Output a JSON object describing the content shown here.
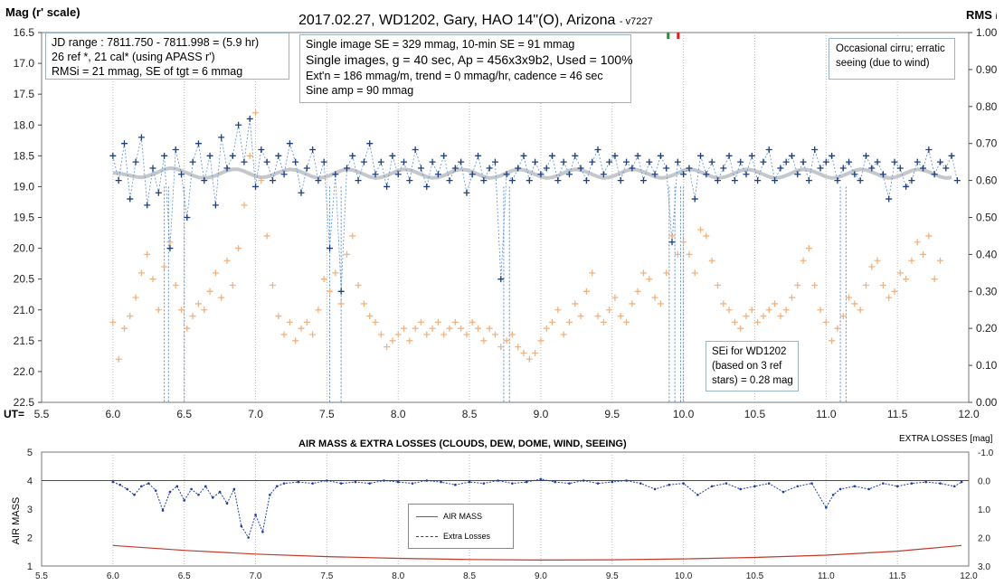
{
  "top_chart": {
    "title": "2017.02.27,  WD1202, Gary, HAO  14\"(O), Arizona",
    "version_tag": "- v7227",
    "y_left_label": "Mag (r' scale)",
    "y_right_label": "RMS",
    "y_right_label_suffix": "i",
    "x_prefix": "UT=",
    "x_ticks": [
      "5.5",
      "6.0",
      "6.5",
      "7.0",
      "7.5",
      "8.0",
      "8.5",
      "9.0",
      "9.5",
      "10.0",
      "10.5",
      "11.0",
      "11.5",
      "12.0"
    ],
    "y_left_ticks": [
      "16.5",
      "17.0",
      "17.5",
      "18.0",
      "18.5",
      "19.0",
      "19.5",
      "20.0",
      "20.5",
      "21.0",
      "21.5",
      "22.0",
      "22.5"
    ],
    "y_right_ticks": [
      "1.00",
      "0.90",
      "0.80",
      "0.70",
      "0.60",
      "0.50",
      "0.40",
      "0.30",
      "0.20",
      "0.10",
      "0.00"
    ],
    "info_left": [
      "JD range  : 7811.750  - 7811.998  = (5.9 hr)",
      "26 ref *, 21 cal* (using APASS  r')",
      "RMSi = 21 mmag, SE of tgt = 6 mmag"
    ],
    "info_mid": [
      "Single image SE = 329 mmag, 10-min SE = 91 mmag",
      "Single images, g = 40 sec, Ap = 456x3x9b2, Used = 100%",
      "Ext'n = 186 mmag/m, trend = 0 mmag/hr, cadence = 46 sec",
      "Sine amp = 90 mmag"
    ],
    "note_right": [
      "Occasional cirru; erratic",
      "seeing (due to wind)"
    ],
    "note_sei": [
      "SEi for WD1202",
      "(based on 3 ref",
      "stars) = 0.28 mag"
    ]
  },
  "bottom_chart": {
    "title": "AIR MASS & EXTRA LOSSES (CLOUDS, DEW, DOME, WIND, SEEING)",
    "y_left_label": "AIR MASS",
    "y_right_label": "EXTRA LOSSES [mag]",
    "x_ticks": [
      "5.5",
      "6.0",
      "6.5",
      "7.0",
      "7.5",
      "8.0",
      "8.5",
      "9.0",
      "9.5",
      "10.0",
      "10.5",
      "11.0",
      "11.5",
      "12.0"
    ],
    "y_left_ticks": [
      "5",
      "4",
      "3",
      "2",
      "1"
    ],
    "y_right_ticks": [
      "-1.0",
      "0.0",
      "1.0",
      "2.0",
      "3.0"
    ],
    "legend": [
      "AIR MASS",
      "Extra Losses"
    ]
  },
  "colors": {
    "target": "#1f3f7a",
    "target_line": "#5b8fd1",
    "rms": "#f2b27e",
    "smooth": "#c4c8cc",
    "airmass": "#c0392b",
    "losses": "#1f3fa0",
    "grid": "#b9b9b9"
  },
  "chart_data": [
    {
      "type": "scatter",
      "title": "2017.02.27,  WD1202, Gary, HAO  14\"(O), Arizona",
      "xlabel": "UT",
      "ylabel": "Mag (r' scale)",
      "y2label": "RMS",
      "xlim": [
        5.5,
        12.0
      ],
      "ylim": [
        16.5,
        22.5
      ],
      "y_inverted": true,
      "y2lim": [
        0.0,
        1.0
      ],
      "grid": true,
      "series": [],
      "target_x": [
        6.0,
        6.04,
        6.08,
        6.12,
        6.16,
        6.2,
        6.24,
        6.28,
        6.32,
        6.36,
        6.4,
        6.44,
        6.48,
        6.52,
        6.56,
        6.6,
        6.64,
        6.68,
        6.72,
        6.76,
        6.8,
        6.84,
        6.88,
        6.92,
        6.96,
        7.0,
        7.04,
        7.08,
        7.12,
        7.16,
        7.2,
        7.24,
        7.28,
        7.32,
        7.36,
        7.4,
        7.44,
        7.48,
        7.52,
        7.56,
        7.6,
        7.64,
        7.68,
        7.72,
        7.76,
        7.8,
        7.84,
        7.88,
        7.92,
        7.96,
        8.0,
        8.04,
        8.08,
        8.12,
        8.16,
        8.2,
        8.24,
        8.28,
        8.32,
        8.36,
        8.4,
        8.44,
        8.48,
        8.52,
        8.56,
        8.6,
        8.64,
        8.68,
        8.72,
        8.76,
        8.8,
        8.84,
        8.88,
        8.92,
        8.96,
        9.0,
        9.04,
        9.08,
        9.12,
        9.16,
        9.2,
        9.24,
        9.28,
        9.32,
        9.36,
        9.4,
        9.44,
        9.48,
        9.52,
        9.56,
        9.6,
        9.64,
        9.68,
        9.72,
        9.76,
        9.8,
        9.84,
        9.88,
        9.92,
        9.96,
        10.0,
        10.04,
        10.08,
        10.12,
        10.16,
        10.2,
        10.24,
        10.28,
        10.32,
        10.36,
        10.4,
        10.44,
        10.48,
        10.52,
        10.56,
        10.6,
        10.64,
        10.68,
        10.72,
        10.76,
        10.8,
        10.84,
        10.88,
        10.92,
        10.96,
        11.0,
        11.04,
        11.08,
        11.12,
        11.16,
        11.2,
        11.24,
        11.28,
        11.32,
        11.36,
        11.4,
        11.44,
        11.48,
        11.52,
        11.56,
        11.6,
        11.64,
        11.68,
        11.72,
        11.76,
        11.8,
        11.84,
        11.88,
        11.92
      ],
      "target_y": [
        18.5,
        18.9,
        18.3,
        19.2,
        18.6,
        18.2,
        19.3,
        18.7,
        19.1,
        18.5,
        20.0,
        18.4,
        18.8,
        19.5,
        18.6,
        18.3,
        18.9,
        18.5,
        19.3,
        18.2,
        18.7,
        18.5,
        18.0,
        18.6,
        17.9,
        19.0,
        18.4,
        18.6,
        18.9,
        18.5,
        18.8,
        18.3,
        18.6,
        19.1,
        18.7,
        18.4,
        18.9,
        18.6,
        20.0,
        18.8,
        20.7,
        18.7,
        18.5,
        18.9,
        18.6,
        18.3,
        18.8,
        18.6,
        19.0,
        18.5,
        18.8,
        18.6,
        18.9,
        18.4,
        18.7,
        19.0,
        18.6,
        18.8,
        18.5,
        18.9,
        18.7,
        18.6,
        19.1,
        18.8,
        18.5,
        18.9,
        18.7,
        18.6,
        20.5,
        18.8,
        18.9,
        18.7,
        18.5,
        18.9,
        18.6,
        18.8,
        18.7,
        18.5,
        18.9,
        18.6,
        18.8,
        18.5,
        18.7,
        18.9,
        18.6,
        18.4,
        18.8,
        18.6,
        18.5,
        18.9,
        18.6,
        18.7,
        18.5,
        18.9,
        18.6,
        18.8,
        18.5,
        18.7,
        19.9,
        18.6,
        18.8,
        18.7,
        19.2,
        18.5,
        18.8,
        18.6,
        18.9,
        18.7,
        18.5,
        18.9,
        18.6,
        18.8,
        18.5,
        18.9,
        18.6,
        18.4,
        18.9,
        18.7,
        18.6,
        18.5,
        18.8,
        18.6,
        18.9,
        18.4,
        18.7,
        18.6,
        18.5,
        18.9,
        18.7,
        18.6,
        18.8,
        18.9,
        18.5,
        18.7,
        18.6,
        18.8,
        19.2,
        18.6,
        18.7,
        19.0,
        18.9,
        18.6,
        18.7,
        18.4,
        18.8,
        18.6,
        18.7,
        18.5,
        18.9,
        18.6,
        18.7,
        18.5
      ],
      "rms_x": [
        6.0,
        6.04,
        6.08,
        6.12,
        6.16,
        6.2,
        6.24,
        6.28,
        6.32,
        6.36,
        6.4,
        6.44,
        6.48,
        6.52,
        6.56,
        6.6,
        6.64,
        6.68,
        6.72,
        6.76,
        6.8,
        6.84,
        6.88,
        6.92,
        6.96,
        7.0,
        7.04,
        7.08,
        7.12,
        7.16,
        7.2,
        7.24,
        7.28,
        7.32,
        7.36,
        7.4,
        7.44,
        7.48,
        7.52,
        7.56,
        7.6,
        7.64,
        7.68,
        7.72,
        7.76,
        7.8,
        7.84,
        7.88,
        7.92,
        7.96,
        8.0,
        8.04,
        8.08,
        8.12,
        8.16,
        8.2,
        8.24,
        8.28,
        8.32,
        8.36,
        8.4,
        8.44,
        8.48,
        8.52,
        8.56,
        8.6,
        8.64,
        8.68,
        8.72,
        8.76,
        8.8,
        8.84,
        8.88,
        8.92,
        8.96,
        9.0,
        9.04,
        9.08,
        9.12,
        9.16,
        9.2,
        9.24,
        9.28,
        9.32,
        9.36,
        9.4,
        9.44,
        9.48,
        9.52,
        9.56,
        9.6,
        9.64,
        9.68,
        9.72,
        9.76,
        9.8,
        9.84,
        9.88,
        9.92,
        9.96,
        10.0,
        10.04,
        10.08,
        10.12,
        10.16,
        10.2,
        10.24,
        10.28,
        10.32,
        10.36,
        10.4,
        10.44,
        10.48,
        10.52,
        10.56,
        10.6,
        10.64,
        10.68,
        10.72,
        10.76,
        10.8,
        10.84,
        10.88,
        10.92,
        10.96,
        11.0,
        11.04,
        11.08,
        11.12,
        11.16,
        11.2,
        11.24,
        11.28,
        11.32,
        11.36,
        11.4,
        11.44,
        11.48,
        11.52,
        11.56,
        11.6,
        11.64,
        11.68,
        11.72,
        11.76,
        11.8,
        11.84,
        11.88,
        11.92
      ],
      "rms_y": [
        21.2,
        21.8,
        21.3,
        21.1,
        20.8,
        20.4,
        20.1,
        20.5,
        21.0,
        20.3,
        19.9,
        20.6,
        21.0,
        21.3,
        21.1,
        20.9,
        21.0,
        20.7,
        20.4,
        20.8,
        20.2,
        20.6,
        20.0,
        19.3,
        18.5,
        17.8,
        18.9,
        19.8,
        20.6,
        21.1,
        21.4,
        21.2,
        21.5,
        21.3,
        21.2,
        21.4,
        21.0,
        20.5,
        20.7,
        20.4,
        20.9,
        20.1,
        19.8,
        20.6,
        20.9,
        21.1,
        21.2,
        21.4,
        21.6,
        21.5,
        21.4,
        21.3,
        21.5,
        21.3,
        21.2,
        21.4,
        21.3,
        21.2,
        21.4,
        21.3,
        21.2,
        21.3,
        21.4,
        21.2,
        21.3,
        21.5,
        21.3,
        21.4,
        21.6,
        21.5,
        21.4,
        21.6,
        21.7,
        21.8,
        21.7,
        21.5,
        21.3,
        21.2,
        21.0,
        21.4,
        21.2,
        20.9,
        21.1,
        20.7,
        20.4,
        21.1,
        21.2,
        21.0,
        20.8,
        21.1,
        21.2,
        20.9,
        20.7,
        20.4,
        20.5,
        20.8,
        20.9,
        20.4,
        19.8,
        20.1,
        19.9,
        20.1,
        20.4,
        19.7,
        19.8,
        20.2,
        20.6,
        20.9,
        21.0,
        21.2,
        21.3,
        21.1,
        21.0,
        21.2,
        21.1,
        21.0,
        20.9,
        21.1,
        21.0,
        20.8,
        20.6,
        20.2,
        20.0,
        20.6,
        21.0,
        21.2,
        21.5,
        21.3,
        21.1,
        20.8,
        20.9,
        21.0,
        20.6,
        20.3,
        20.2,
        20.6,
        20.8,
        20.7,
        20.4,
        20.5,
        20.2,
        19.9,
        20.1,
        19.8,
        20.5,
        20.2
      ],
      "smooth_y": [
        18.78,
        18.78,
        18.8,
        18.82,
        18.84,
        18.85,
        18.83,
        18.8,
        18.76,
        18.72,
        18.7,
        18.71,
        18.74,
        18.78,
        18.82,
        18.85,
        18.86,
        18.85,
        18.82,
        18.78,
        18.74,
        18.72,
        18.72,
        18.75,
        18.79,
        18.83,
        18.85,
        18.84,
        18.81,
        18.77,
        18.74,
        18.72,
        18.73,
        18.76,
        18.8,
        18.84,
        18.86,
        18.85,
        18.82,
        18.78,
        18.74,
        18.72,
        18.73,
        18.76,
        18.8,
        18.84,
        18.86,
        18.85,
        18.82,
        18.78,
        18.74,
        18.72,
        18.73,
        18.76,
        18.8,
        18.84,
        18.86,
        18.85,
        18.82,
        18.78,
        18.74,
        18.72,
        18.73,
        18.76,
        18.8,
        18.84,
        18.86,
        18.85,
        18.82,
        18.78,
        18.74,
        18.72,
        18.73,
        18.76,
        18.8,
        18.84,
        18.86,
        18.85,
        18.82,
        18.78,
        18.74,
        18.72,
        18.73,
        18.76,
        18.8,
        18.84,
        18.86,
        18.85,
        18.82,
        18.78,
        18.74,
        18.72,
        18.73,
        18.76,
        18.8,
        18.84,
        18.86,
        18.85,
        18.82,
        18.78,
        18.74,
        18.72,
        18.73,
        18.76,
        18.8,
        18.84,
        18.86,
        18.85,
        18.82,
        18.78,
        18.74,
        18.72,
        18.73,
        18.76,
        18.8,
        18.84,
        18.86,
        18.85,
        18.82,
        18.78,
        18.74,
        18.72,
        18.73,
        18.76,
        18.8,
        18.84,
        18.86,
        18.85,
        18.82,
        18.78,
        18.74,
        18.72,
        18.73,
        18.76,
        18.8,
        18.84,
        18.86,
        18.85,
        18.82,
        18.78,
        18.74,
        18.72,
        18.73,
        18.76,
        18.8,
        18.84,
        18.86,
        18.85
      ],
      "dropouts_x": [
        6.36,
        6.39,
        6.5,
        7.52,
        7.6,
        8.74,
        8.78,
        9.9,
        9.94,
        9.98,
        10.0,
        11.1,
        11.14
      ]
    },
    {
      "type": "line",
      "title": "AIR MASS & EXTRA LOSSES (CLOUDS, DEW, DOME, WIND, SEEING)",
      "xlabel": "",
      "ylabel": "AIR MASS",
      "y2label": "EXTRA LOSSES [mag]",
      "xlim": [
        5.5,
        12.0
      ],
      "ylim": [
        1,
        5
      ],
      "y2lim": [
        -1.0,
        3.0
      ],
      "y2_inverted": true,
      "series": [
        {
          "name": "AIR MASS",
          "x": [
            6.0,
            6.5,
            7.0,
            7.5,
            8.0,
            8.5,
            9.0,
            9.5,
            10.0,
            10.5,
            11.0,
            11.5,
            11.95
          ],
          "values": [
            1.72,
            1.55,
            1.42,
            1.33,
            1.27,
            1.23,
            1.21,
            1.22,
            1.25,
            1.3,
            1.38,
            1.52,
            1.72
          ]
        },
        {
          "name": "Extra Losses",
          "x": [
            6.0,
            6.05,
            6.1,
            6.15,
            6.2,
            6.25,
            6.3,
            6.35,
            6.4,
            6.45,
            6.5,
            6.55,
            6.6,
            6.65,
            6.7,
            6.75,
            6.8,
            6.85,
            6.9,
            6.95,
            7.0,
            7.05,
            7.1,
            7.15,
            7.2,
            7.3,
            7.4,
            7.5,
            7.6,
            7.7,
            7.8,
            7.9,
            8.0,
            8.1,
            8.2,
            8.3,
            8.4,
            8.5,
            8.6,
            8.7,
            8.8,
            8.9,
            9.0,
            9.1,
            9.2,
            9.3,
            9.4,
            9.5,
            9.6,
            9.7,
            9.8,
            9.9,
            10.0,
            10.1,
            10.2,
            10.3,
            10.4,
            10.5,
            10.6,
            10.7,
            10.8,
            10.9,
            11.0,
            11.05,
            11.1,
            11.2,
            11.3,
            11.4,
            11.5,
            11.6,
            11.7,
            11.8,
            11.9,
            11.95
          ],
          "values": [
            0.05,
            0.15,
            0.3,
            0.5,
            0.2,
            0.1,
            0.35,
            1.05,
            0.4,
            0.2,
            0.7,
            0.3,
            0.5,
            0.2,
            0.6,
            0.4,
            0.8,
            0.3,
            1.6,
            2.0,
            1.2,
            1.8,
            0.5,
            0.2,
            0.1,
            0.05,
            0.1,
            0.0,
            0.1,
            0.05,
            0.1,
            0.0,
            0.05,
            0.1,
            0.0,
            0.05,
            0.15,
            0.05,
            0.1,
            0.0,
            0.1,
            0.05,
            -0.05,
            0.05,
            0.1,
            0.0,
            0.1,
            0.05,
            0.0,
            0.1,
            0.3,
            0.15,
            0.1,
            0.5,
            0.2,
            0.1,
            0.3,
            0.2,
            0.1,
            0.4,
            0.2,
            0.1,
            0.95,
            0.5,
            0.3,
            0.2,
            0.3,
            0.1,
            0.2,
            0.1,
            0.05,
            0.1,
            0.2,
            0.05
          ]
        }
      ]
    }
  ]
}
